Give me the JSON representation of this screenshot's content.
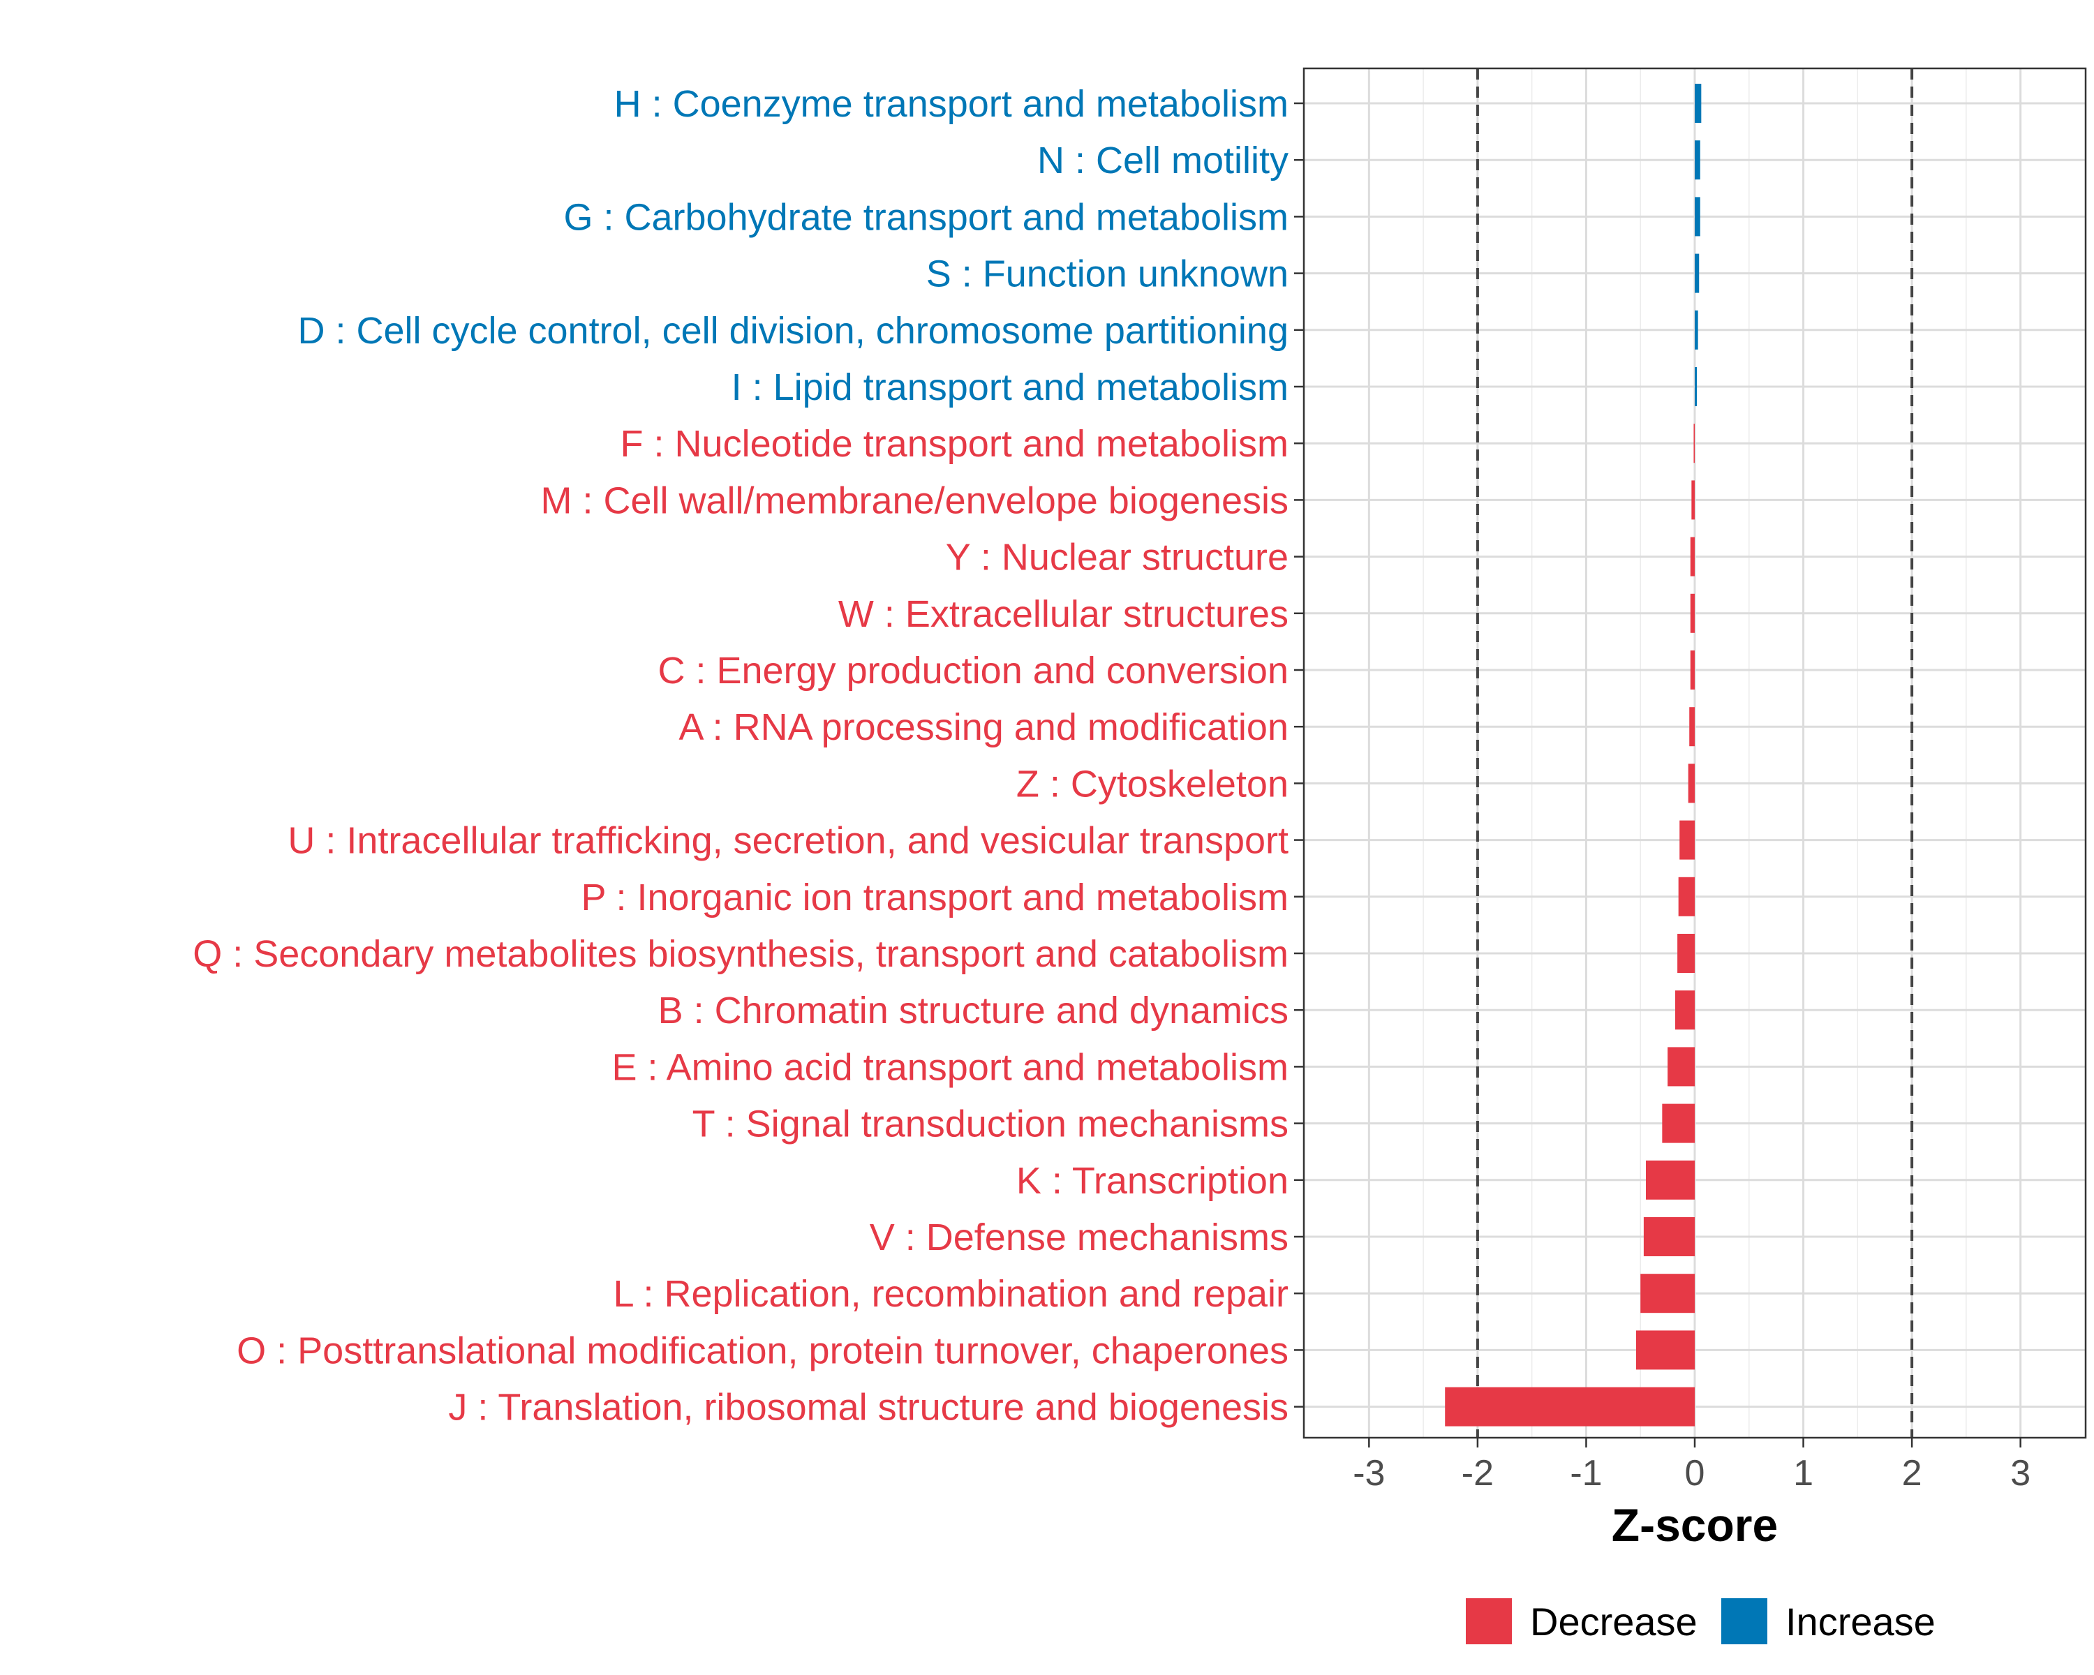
{
  "chart_data": {
    "type": "bar",
    "orientation": "horizontal",
    "xlabel": "Z-score",
    "ylabel": "",
    "xlim": [
      -3.6,
      3.6
    ],
    "x_ticks": [
      -3,
      -2,
      -1,
      0,
      1,
      2,
      3
    ],
    "tick_labels": [
      "-3",
      "-2",
      "-1",
      "0",
      "1",
      "2",
      "3"
    ],
    "reference_lines": [
      -2,
      2
    ],
    "grid": true,
    "colors": {
      "Decrease": "#e63946",
      "Increase": "#0077b6"
    },
    "legend": {
      "position": "bottom",
      "entries": [
        "Decrease",
        "Increase"
      ]
    },
    "categories": [
      "H : Coenzyme transport and metabolism",
      "N : Cell motility",
      "G : Carbohydrate transport and metabolism",
      "S : Function unknown",
      "D : Cell cycle control, cell division, chromosome partitioning",
      "I : Lipid transport and metabolism",
      "F : Nucleotide transport and metabolism",
      "M : Cell wall/membrane/envelope biogenesis",
      "Y : Nuclear structure",
      "W : Extracellular structures",
      "C : Energy production and conversion",
      "A : RNA processing and modification",
      "Z : Cytoskeleton",
      "U : Intracellular trafficking, secretion, and vesicular transport",
      "P : Inorganic ion transport and metabolism",
      "Q : Secondary metabolites biosynthesis, transport and catabolism",
      "B : Chromatin structure and dynamics",
      "E : Amino acid transport and metabolism",
      "T : Signal transduction mechanisms",
      "K : Transcription",
      "V : Defense mechanisms",
      "L : Replication, recombination and repair",
      "O : Posttranslational modification, protein turnover, chaperones",
      "J : Translation, ribosomal structure and biogenesis"
    ],
    "values": [
      0.06,
      0.05,
      0.05,
      0.04,
      0.03,
      0.02,
      -0.01,
      -0.03,
      -0.04,
      -0.04,
      -0.04,
      -0.05,
      -0.06,
      -0.14,
      -0.15,
      -0.16,
      -0.18,
      -0.25,
      -0.3,
      -0.45,
      -0.47,
      -0.5,
      -0.54,
      -2.3
    ],
    "direction": [
      "Increase",
      "Increase",
      "Increase",
      "Increase",
      "Increase",
      "Increase",
      "Decrease",
      "Decrease",
      "Decrease",
      "Decrease",
      "Decrease",
      "Decrease",
      "Decrease",
      "Decrease",
      "Decrease",
      "Decrease",
      "Decrease",
      "Decrease",
      "Decrease",
      "Decrease",
      "Decrease",
      "Decrease",
      "Decrease",
      "Decrease"
    ]
  }
}
